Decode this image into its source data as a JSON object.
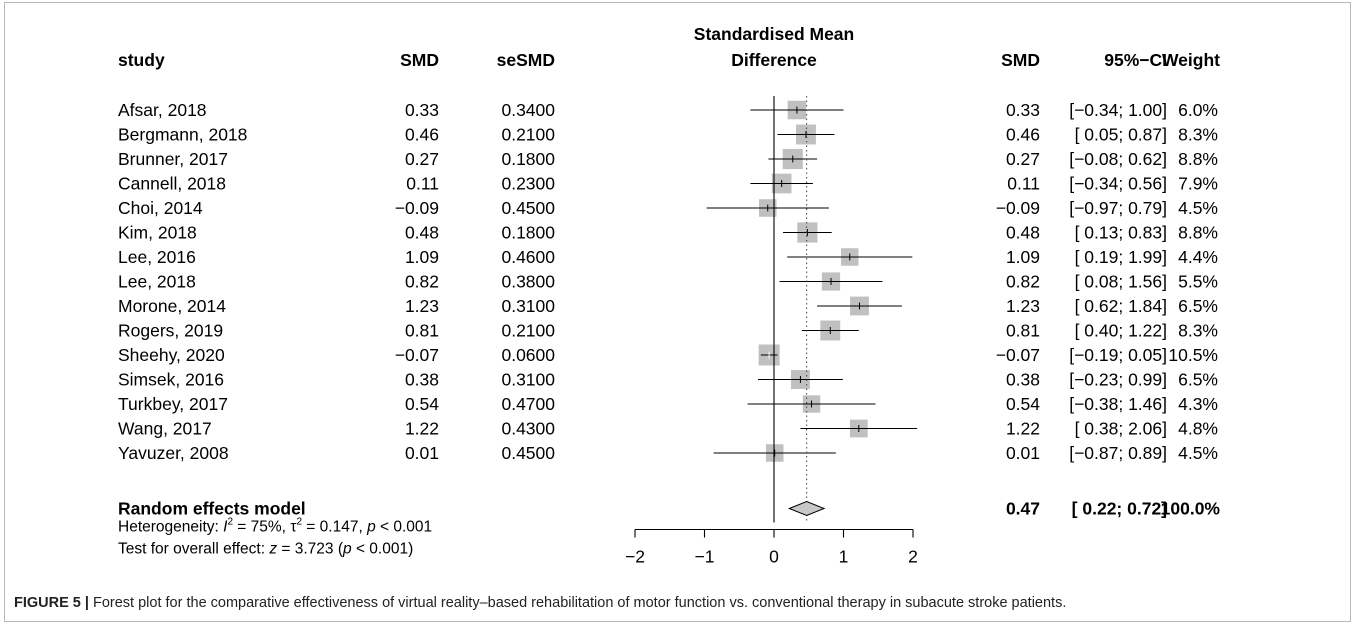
{
  "chart_data": {
    "type": "forest",
    "columns": {
      "study": "study",
      "smd": "SMD",
      "se": "seSMD",
      "plot_title_1": "Standardised Mean",
      "plot_title_2": "Difference",
      "smd_right": "SMD",
      "ci": "95%−CI",
      "weight": "Weight"
    },
    "xlim": [
      -2,
      2
    ],
    "xticks": [
      -2,
      -1,
      0,
      1,
      2
    ],
    "xtick_labels": [
      "−2",
      "−1",
      "0",
      "1",
      "2"
    ],
    "reference_line": 0,
    "pooled_line": 0.47,
    "studies": [
      {
        "study": "Afsar, 2018",
        "smd": 0.33,
        "smd_text": "0.33",
        "se_text": "0.3400",
        "lower": -0.34,
        "upper": 1.0,
        "ci_text": "[−0.34; 1.00]",
        "weight": 6.0,
        "weight_text": "6.0%"
      },
      {
        "study": "Bergmann, 2018",
        "smd": 0.46,
        "smd_text": "0.46",
        "se_text": "0.2100",
        "lower": 0.05,
        "upper": 0.87,
        "ci_text": "[ 0.05; 0.87]",
        "weight": 8.3,
        "weight_text": "8.3%"
      },
      {
        "study": "Brunner, 2017",
        "smd": 0.27,
        "smd_text": "0.27",
        "se_text": "0.1800",
        "lower": -0.08,
        "upper": 0.62,
        "ci_text": "[−0.08; 0.62]",
        "weight": 8.8,
        "weight_text": "8.8%"
      },
      {
        "study": "Cannell, 2018",
        "smd": 0.11,
        "smd_text": "0.11",
        "se_text": "0.2300",
        "lower": -0.34,
        "upper": 0.56,
        "ci_text": "[−0.34; 0.56]",
        "weight": 7.9,
        "weight_text": "7.9%"
      },
      {
        "study": "Choi, 2014",
        "smd": -0.09,
        "smd_text": "−0.09",
        "se_text": "0.4500",
        "lower": -0.97,
        "upper": 0.79,
        "ci_text": "[−0.97; 0.79]",
        "weight": 4.5,
        "weight_text": "4.5%"
      },
      {
        "study": "Kim, 2018",
        "smd": 0.48,
        "smd_text": "0.48",
        "se_text": "0.1800",
        "lower": 0.13,
        "upper": 0.83,
        "ci_text": "[ 0.13; 0.83]",
        "weight": 8.8,
        "weight_text": "8.8%"
      },
      {
        "study": "Lee, 2016",
        "smd": 1.09,
        "smd_text": "1.09",
        "se_text": "0.4600",
        "lower": 0.19,
        "upper": 1.99,
        "ci_text": "[ 0.19; 1.99]",
        "weight": 4.4,
        "weight_text": "4.4%"
      },
      {
        "study": "Lee, 2018",
        "smd": 0.82,
        "smd_text": "0.82",
        "se_text": "0.3800",
        "lower": 0.08,
        "upper": 1.56,
        "ci_text": "[ 0.08; 1.56]",
        "weight": 5.5,
        "weight_text": "5.5%"
      },
      {
        "study": "Morone, 2014",
        "smd": 1.23,
        "smd_text": "1.23",
        "se_text": "0.3100",
        "lower": 0.62,
        "upper": 1.84,
        "ci_text": "[ 0.62; 1.84]",
        "weight": 6.5,
        "weight_text": "6.5%"
      },
      {
        "study": "Rogers, 2019",
        "smd": 0.81,
        "smd_text": "0.81",
        "se_text": "0.2100",
        "lower": 0.4,
        "upper": 1.22,
        "ci_text": "[ 0.40; 1.22]",
        "weight": 8.3,
        "weight_text": "8.3%"
      },
      {
        "study": "Sheehy, 2020",
        "smd": -0.07,
        "smd_text": "−0.07",
        "se_text": "0.0600",
        "lower": -0.19,
        "upper": 0.05,
        "ci_text": "[−0.19; 0.05]",
        "weight": 10.5,
        "weight_text": "10.5%"
      },
      {
        "study": "Simsek, 2016",
        "smd": 0.38,
        "smd_text": "0.38",
        "se_text": "0.3100",
        "lower": -0.23,
        "upper": 0.99,
        "ci_text": "[−0.23; 0.99]",
        "weight": 6.5,
        "weight_text": "6.5%"
      },
      {
        "study": "Turkbey, 2017",
        "smd": 0.54,
        "smd_text": "0.54",
        "se_text": "0.4700",
        "lower": -0.38,
        "upper": 1.46,
        "ci_text": "[−0.38; 1.46]",
        "weight": 4.3,
        "weight_text": "4.3%"
      },
      {
        "study": "Wang, 2017",
        "smd": 1.22,
        "smd_text": "1.22",
        "se_text": "0.4300",
        "lower": 0.38,
        "upper": 2.06,
        "ci_text": "[ 0.38; 2.06]",
        "weight": 4.8,
        "weight_text": "4.8%"
      },
      {
        "study": "Yavuzer, 2008",
        "smd": 0.01,
        "smd_text": "0.01",
        "se_text": "0.4500",
        "lower": -0.87,
        "upper": 0.89,
        "ci_text": "[−0.87; 0.89]",
        "weight": 4.5,
        "weight_text": "4.5%"
      }
    ],
    "pooled": {
      "label": "Random effects model",
      "smd": 0.47,
      "smd_text": "0.47",
      "lower": 0.22,
      "upper": 0.72,
      "ci_text": "[ 0.22; 0.72]",
      "weight_text": "100.0%"
    },
    "heterogeneity": {
      "prefix": "Heterogeneity: ",
      "i2_symbol": "I",
      "i2_exp": "2",
      "i2_value": " = 75%, ",
      "tau_symbol": "τ",
      "tau_exp": "2",
      "tau_value": " = 0.147, ",
      "p_symbol": "p",
      "p_value": " < 0.001"
    },
    "overall_test": {
      "prefix": "Test for overall effect: ",
      "z_symbol": "z",
      "z_value": " = 3.723 (",
      "p_symbol": "p",
      "p_value": " < 0.001)"
    },
    "colors": {
      "box": "#c0c0c0",
      "diamond": "#c8c8c8",
      "line": "#000000",
      "pooled_line": "#444444"
    }
  },
  "caption": {
    "label": "FIGURE 5 |",
    "text": " Forest plot for the comparative effectiveness of virtual reality–based rehabilitation of motor function vs. conventional therapy in subacute stroke patients."
  }
}
